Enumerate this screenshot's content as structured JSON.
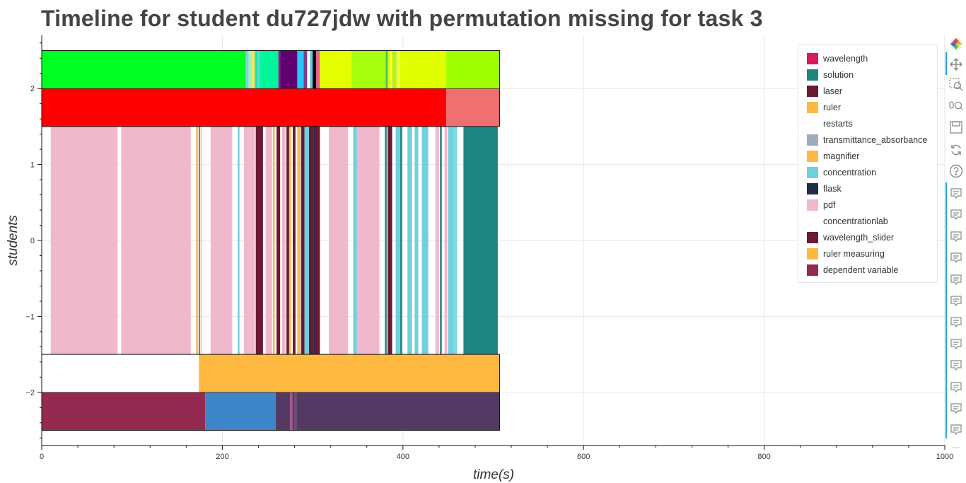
{
  "page": {
    "title": "Timeline for student du727jdw with permutation missing for task 3"
  },
  "chart_data": {
    "type": "bar",
    "orientation": "horizontal-timeline",
    "title": "Timeline for student du727jdw with permutation missing for task 3",
    "xlabel": "time(s)",
    "ylabel": "students",
    "xlim": [
      0,
      1000
    ],
    "ylim": [
      -2.7,
      2.7
    ],
    "x_ticks": [
      0,
      200,
      400,
      600,
      800,
      1000
    ],
    "y_ticks": [
      2,
      1,
      0,
      -1,
      -2
    ],
    "y_tick_labels": [
      "2",
      "1",
      "0",
      "−1",
      "−2"
    ],
    "grid": true,
    "legend_position": "top-right",
    "legend": [
      {
        "label": "wavelength",
        "color": "#d81b60"
      },
      {
        "label": "solution",
        "color": "#1f8580"
      },
      {
        "label": "laser",
        "color": "#6b1a33"
      },
      {
        "label": "ruler",
        "color": "#ffb940"
      },
      {
        "label": "restarts",
        "color": null
      },
      {
        "label": "transmittance_absorbance",
        "color": "#9eacbd"
      },
      {
        "label": "magnifier",
        "color": "#ffb940"
      },
      {
        "label": "concentration",
        "color": "#6fd0de"
      },
      {
        "label": "flask",
        "color": "#1d2d44"
      },
      {
        "label": "pdf",
        "color": "#f0b8cb"
      },
      {
        "label": "concentrationlab",
        "color": null
      },
      {
        "label": "wavelength_slider",
        "color": "#6b1a33"
      },
      {
        "label": "ruler measuring",
        "color": "#ffb940"
      },
      {
        "label": "dependent variable",
        "color": "#952a50"
      }
    ],
    "rows": [
      {
        "y_range": [
          2,
          2.5
        ],
        "segments": [
          {
            "start": 0,
            "end": 226,
            "color": "#00ff22"
          },
          {
            "start": 226,
            "end": 229,
            "color": "#7fd4dc"
          },
          {
            "start": 229,
            "end": 233,
            "color": "#a0f0c0"
          },
          {
            "start": 233,
            "end": 236,
            "color": "#ffe14d"
          },
          {
            "start": 236,
            "end": 239,
            "color": "#00f0a8"
          },
          {
            "start": 239,
            "end": 241,
            "color": "#70c8e0"
          },
          {
            "start": 241,
            "end": 244,
            "color": "#00ff88"
          },
          {
            "start": 244,
            "end": 262,
            "color": "#00f59a"
          },
          {
            "start": 262,
            "end": 264,
            "color": "#7b2b83"
          },
          {
            "start": 264,
            "end": 283,
            "color": "#600070"
          },
          {
            "start": 283,
            "end": 290,
            "color": "#20c8ff"
          },
          {
            "start": 290,
            "end": 294,
            "color": "#7f3f8a"
          },
          {
            "start": 294,
            "end": 297,
            "color": "#ffffff"
          },
          {
            "start": 297,
            "end": 300,
            "color": "#5ec8e8"
          },
          {
            "start": 300,
            "end": 304,
            "color": "#000000"
          },
          {
            "start": 304,
            "end": 308,
            "color": "#f06090"
          },
          {
            "start": 308,
            "end": 343,
            "color": "#e6ff00"
          },
          {
            "start": 343,
            "end": 381,
            "color": "#a8ff10"
          },
          {
            "start": 381,
            "end": 383,
            "color": "#40c060"
          },
          {
            "start": 383,
            "end": 386,
            "color": "#d4ff00"
          },
          {
            "start": 386,
            "end": 388,
            "color": "#ffff30"
          },
          {
            "start": 388,
            "end": 393,
            "color": "#b8f020"
          },
          {
            "start": 393,
            "end": 397,
            "color": "#f0ff40"
          },
          {
            "start": 397,
            "end": 448,
            "color": "#e0ff00"
          },
          {
            "start": 448,
            "end": 507,
            "color": "#a0ff00"
          }
        ]
      },
      {
        "y_range": [
          1.5,
          2
        ],
        "segments": [
          {
            "start": 0,
            "end": 448,
            "color": "#ff0000"
          },
          {
            "start": 448,
            "end": 507,
            "color": "#ef7070"
          }
        ]
      },
      {
        "y_range": [
          -1.5,
          1.5
        ],
        "segments": [
          {
            "start": 10,
            "end": 84,
            "color": "#f0b8cb"
          },
          {
            "start": 88,
            "end": 165,
            "color": "#f0b8cb"
          },
          {
            "start": 171,
            "end": 173,
            "color": "#ffb940"
          },
          {
            "start": 174,
            "end": 175,
            "color": "#1d2d44"
          },
          {
            "start": 176,
            "end": 177,
            "color": "#ffb940"
          },
          {
            "start": 187,
            "end": 211,
            "color": "#f0b8cb"
          },
          {
            "start": 217,
            "end": 219,
            "color": "#6fd0de"
          },
          {
            "start": 224,
            "end": 236,
            "color": "#f0b8cb"
          },
          {
            "start": 237,
            "end": 245,
            "color": "#6b1a33"
          },
          {
            "start": 248,
            "end": 255,
            "color": "#f0b8cb"
          },
          {
            "start": 256,
            "end": 258,
            "color": "#ffb940"
          },
          {
            "start": 260,
            "end": 264,
            "color": "#6b1a33"
          },
          {
            "start": 266,
            "end": 270,
            "color": "#f0b8cb"
          },
          {
            "start": 271,
            "end": 274,
            "color": "#6b1a33"
          },
          {
            "start": 274,
            "end": 276,
            "color": "#ffb940"
          },
          {
            "start": 278,
            "end": 281,
            "color": "#6b1a33"
          },
          {
            "start": 283,
            "end": 286,
            "color": "#ffb940"
          },
          {
            "start": 287,
            "end": 291,
            "color": "#6b1a33"
          },
          {
            "start": 291,
            "end": 296,
            "color": "#6fd0de"
          },
          {
            "start": 296,
            "end": 301,
            "color": "#6b1a33"
          },
          {
            "start": 301,
            "end": 303,
            "color": "#1d2d44"
          },
          {
            "start": 303,
            "end": 308,
            "color": "#6b1a33"
          },
          {
            "start": 318,
            "end": 339,
            "color": "#f0b8cb"
          },
          {
            "start": 345,
            "end": 349,
            "color": "#6fd0de"
          },
          {
            "start": 349,
            "end": 374,
            "color": "#f0b8cb"
          },
          {
            "start": 380,
            "end": 382,
            "color": "#1f8580"
          },
          {
            "start": 383,
            "end": 388,
            "color": "#6b1a33"
          },
          {
            "start": 392,
            "end": 397,
            "color": "#6fd0de"
          },
          {
            "start": 397,
            "end": 399,
            "color": "#1f8580"
          },
          {
            "start": 405,
            "end": 410,
            "color": "#6fd0de"
          },
          {
            "start": 413,
            "end": 417,
            "color": "#6fd0de"
          },
          {
            "start": 421,
            "end": 428,
            "color": "#6fd0de"
          },
          {
            "start": 436,
            "end": 440,
            "color": "#f0b8cb"
          },
          {
            "start": 441,
            "end": 443,
            "color": "#1f8580"
          },
          {
            "start": 446,
            "end": 449,
            "color": "#f0b8cb"
          },
          {
            "start": 450,
            "end": 456,
            "color": "#6fd0de"
          },
          {
            "start": 456,
            "end": 460,
            "color": "#7fd8e4"
          },
          {
            "start": 467,
            "end": 505,
            "color": "#1f8580"
          }
        ]
      },
      {
        "y_range": [
          -2,
          -1.5
        ],
        "segments": [
          {
            "start": 174,
            "end": 507,
            "color": "#ffb940"
          }
        ]
      },
      {
        "y_range": [
          -2.5,
          -2
        ],
        "segments": [
          {
            "start": 0,
            "end": 181,
            "color": "#952a50"
          },
          {
            "start": 181,
            "end": 259,
            "color": "#3d85c6"
          },
          {
            "start": 259,
            "end": 275,
            "color": "#533a64"
          },
          {
            "start": 275,
            "end": 278,
            "color": "#a0528a"
          },
          {
            "start": 278,
            "end": 280,
            "color": "#533a64"
          },
          {
            "start": 280,
            "end": 282,
            "color": "#7a4a78"
          },
          {
            "start": 282,
            "end": 507,
            "color": "#533a64"
          }
        ]
      }
    ],
    "row_outline": [
      {
        "y_range": [
          1.5,
          2.5
        ],
        "x_range": [
          0,
          507
        ]
      },
      {
        "y_range": [
          -2.5,
          -1.5
        ],
        "x_range": [
          0,
          507
        ]
      }
    ]
  },
  "toolbar": {
    "items": [
      {
        "name": "bokeh-logo-icon"
      },
      {
        "name": "pan-tool-icon"
      },
      {
        "name": "box-zoom-tool-icon"
      },
      {
        "name": "wheel-zoom-tool-icon"
      },
      {
        "name": "save-tool-icon"
      },
      {
        "name": "reset-tool-icon"
      },
      {
        "name": "help-tool-icon"
      },
      {
        "name": "hover-tool-icon",
        "count": 12
      }
    ],
    "more_label": "···"
  }
}
